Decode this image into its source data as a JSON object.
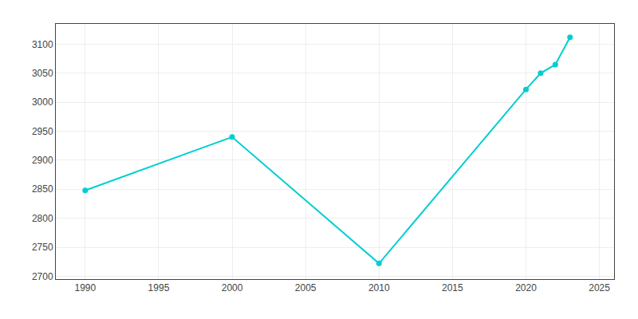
{
  "chart_data": {
    "type": "line",
    "x": [
      1990,
      2000,
      2010,
      2020,
      2021,
      2022,
      2023
    ],
    "values": [
      2848,
      2940,
      2722,
      3022,
      3050,
      3065,
      3112
    ],
    "color": "#00CED1",
    "marker": "circle",
    "xlim": [
      1988,
      2026
    ],
    "ylim": [
      2695,
      3135
    ],
    "xticks": [
      1990,
      1995,
      2000,
      2005,
      2010,
      2015,
      2020,
      2025
    ],
    "yticks": [
      2700,
      2750,
      2800,
      2850,
      2900,
      2950,
      3000,
      3050,
      3100
    ],
    "grid": true
  }
}
